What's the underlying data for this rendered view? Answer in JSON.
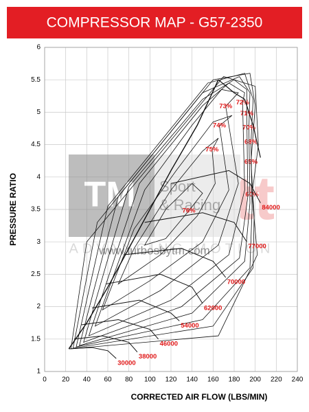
{
  "chart_data": {
    "type": "compressor_map",
    "title": "COMPRESSOR MAP  -  G57-2350",
    "x_label": "CORRECTED AIR FLOW (LBS/MIN)",
    "y_label": "PRESSURE RATIO",
    "xlim": [
      0,
      240
    ],
    "xticks": [
      0,
      20,
      40,
      60,
      80,
      100,
      120,
      140,
      160,
      180,
      200,
      220,
      240
    ],
    "ylim": [
      1,
      6
    ],
    "yticks": [
      1,
      1.5,
      2,
      2.5,
      3,
      3.5,
      4,
      4.5,
      5,
      5.5,
      6
    ],
    "grid": true,
    "line_color": "#111111",
    "label_color": "#e01818",
    "watermarks": {
      "tm": "TM",
      "sport": "Sport",
      "racing": "& Racing",
      "url": "www.turbosbytm.com",
      "brand": "Garrett",
      "tagline": "ADVANCING MOTION"
    },
    "surge_line": {
      "x": [
        23,
        40,
        60,
        80,
        100,
        120,
        145,
        165
      ],
      "y": [
        1.35,
        1.75,
        2.3,
        2.9,
        3.5,
        4.1,
        4.8,
        5.5
      ]
    },
    "choke_line": {
      "x": [
        165,
        180,
        190,
        198,
        205
      ],
      "y": [
        5.5,
        5.3,
        5.2,
        4.8,
        4.3
      ]
    },
    "speed_lines": [
      {
        "name": "30000",
        "x": [
          23,
          45,
          60,
          68
        ],
        "y": [
          1.35,
          1.37,
          1.32,
          1.2
        ]
      },
      {
        "name": "38000",
        "x": [
          28,
          55,
          80,
          88
        ],
        "y": [
          1.5,
          1.55,
          1.45,
          1.3
        ]
      },
      {
        "name": "46000",
        "x": [
          35,
          70,
          100,
          108
        ],
        "y": [
          1.72,
          1.8,
          1.65,
          1.5
        ]
      },
      {
        "name": "54000",
        "x": [
          45,
          90,
          120,
          128
        ],
        "y": [
          1.98,
          2.1,
          1.9,
          1.78
        ]
      },
      {
        "name": "62000",
        "x": [
          58,
          110,
          140,
          150
        ],
        "y": [
          2.35,
          2.5,
          2.3,
          2.05
        ]
      },
      {
        "name": "70000",
        "x": [
          75,
          130,
          160,
          172
        ],
        "y": [
          2.8,
          2.9,
          2.7,
          2.45
        ]
      },
      {
        "name": "77000",
        "x": [
          95,
          150,
          180,
          192
        ],
        "y": [
          3.3,
          3.45,
          3.3,
          3.0
        ]
      },
      {
        "name": "84000",
        "x": [
          120,
          175,
          195,
          205
        ],
        "y": [
          3.9,
          4.1,
          3.9,
          3.6
        ]
      }
    ],
    "islands": [
      {
        "name": "60%",
        "x": [
          197,
          203,
          200,
          170,
          40,
          25,
          165,
          202
        ],
        "y": [
          3.73,
          4.5,
          5.4,
          5.55,
          3.0,
          1.35,
          1.55,
          2.8
        ]
      },
      {
        "name": "65%",
        "x": [
          196,
          200,
          195,
          160,
          50,
          27,
          160,
          198,
          199
        ],
        "y": [
          4.23,
          5.1,
          5.6,
          5.5,
          3.3,
          1.36,
          1.7,
          2.6,
          3.4
        ]
      },
      {
        "name": "68%",
        "x": [
          196,
          198,
          190,
          155,
          60,
          30,
          150,
          195,
          197
        ],
        "y": [
          4.54,
          5.2,
          5.6,
          5.45,
          3.55,
          1.38,
          1.8,
          2.6,
          3.5
        ]
      },
      {
        "name": "70%",
        "x": [
          194,
          195,
          185,
          150,
          70,
          33,
          140,
          190,
          195
        ],
        "y": [
          4.76,
          5.3,
          5.55,
          5.3,
          3.7,
          1.4,
          1.9,
          2.7,
          3.6
        ]
      },
      {
        "name": "71%",
        "x": [
          192,
          192,
          180,
          150,
          80,
          37,
          130,
          185,
          193
        ],
        "y": [
          4.98,
          5.35,
          5.5,
          5.2,
          3.85,
          1.45,
          2.0,
          2.75,
          3.7
        ]
      },
      {
        "name": "72%",
        "x": [
          188,
          190,
          175,
          150,
          90,
          42,
          120,
          175,
          190
        ],
        "y": [
          5.15,
          5.3,
          5.45,
          5.1,
          3.9,
          1.55,
          2.1,
          2.8,
          3.8
        ]
      },
      {
        "name": "73%",
        "x": [
          172,
          184,
          168,
          140,
          95,
          48,
          110,
          165,
          184
        ],
        "y": [
          5.09,
          5.3,
          5.35,
          4.8,
          3.8,
          1.7,
          2.25,
          2.95,
          3.9
        ]
      },
      {
        "name": "74%",
        "x": [
          166,
          178,
          160,
          125,
          85,
          55,
          100,
          150,
          175
        ],
        "y": [
          4.79,
          4.95,
          4.85,
          4.1,
          3.2,
          1.95,
          2.4,
          3.0,
          3.8
        ]
      },
      {
        "name": "75%",
        "x": [
          159,
          165,
          150,
          120,
          85,
          70,
          110,
          145,
          162
        ],
        "y": [
          4.42,
          4.6,
          4.4,
          3.8,
          2.9,
          2.35,
          2.8,
          3.4,
          3.9
        ]
      },
      {
        "name": "76%",
        "x": [
          137,
          150,
          140,
          115,
          95,
          115
        ],
        "y": [
          3.48,
          3.75,
          3.9,
          3.5,
          2.95,
          3.05
        ]
      }
    ]
  }
}
